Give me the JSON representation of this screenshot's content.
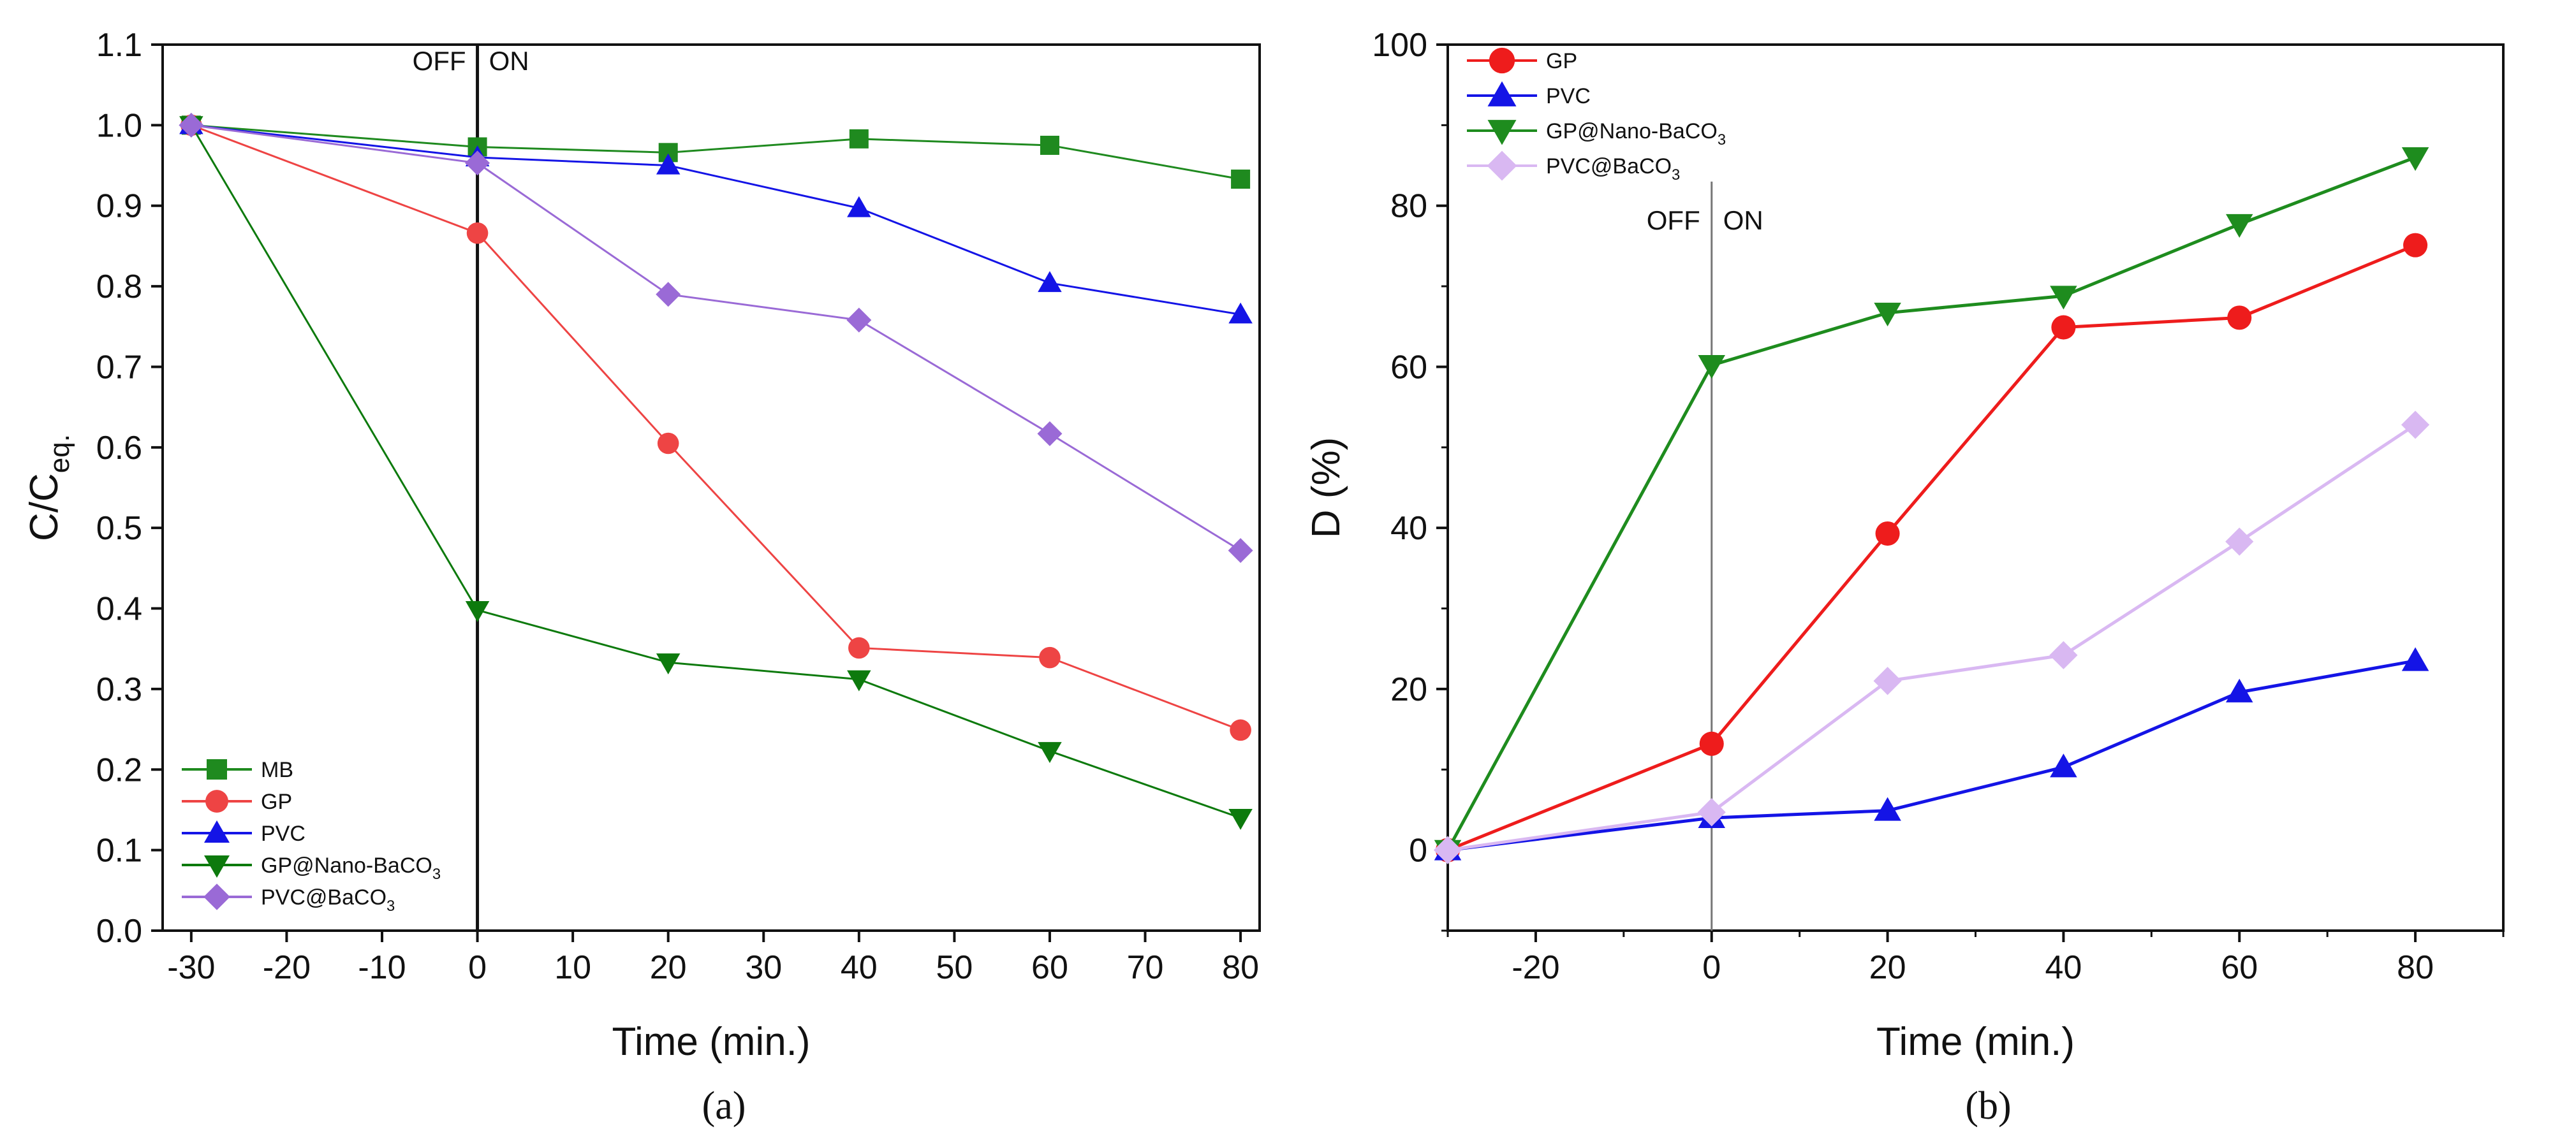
{
  "chart_data": [
    {
      "panel": "a",
      "panel_label": "(a)",
      "type": "line",
      "xlabel": "Time (min.)",
      "ylabel": "C/C_eq.",
      "ylabel_main": "C/C",
      "ylabel_sub": "eq.",
      "xlim": [
        -33,
        82
      ],
      "ylim": [
        0,
        1.1
      ],
      "xticks": [
        -30,
        -20,
        -10,
        0,
        10,
        20,
        30,
        40,
        50,
        60,
        70,
        80
      ],
      "yticks": [
        0.0,
        0.1,
        0.2,
        0.3,
        0.4,
        0.5,
        0.6,
        0.7,
        0.8,
        0.9,
        1.0,
        1.1
      ],
      "xtick_labels": [
        "-30",
        "-20",
        "-10",
        "0",
        "10",
        "20",
        "30",
        "40",
        "50",
        "60",
        "70",
        "80"
      ],
      "ytick_labels": [
        "0.0",
        "0.1",
        "0.2",
        "0.3",
        "0.4",
        "0.5",
        "0.6",
        "0.7",
        "0.8",
        "0.9",
        "1.0",
        "1.1"
      ],
      "vline": {
        "x": 0,
        "off_label": "OFF",
        "on_label": "ON"
      },
      "legend_position": "bottom-left",
      "series": [
        {
          "name": "MB",
          "name_main": "MB",
          "name_sub": "",
          "color": "#1f8a1f",
          "marker": "square",
          "x": [
            -30,
            0,
            20,
            40,
            60,
            80
          ],
          "y": [
            1.0,
            0.973,
            0.966,
            0.983,
            0.975,
            0.933
          ]
        },
        {
          "name": "GP",
          "name_main": "GP",
          "name_sub": "",
          "color": "#ee4444",
          "marker": "circle",
          "x": [
            -30,
            0,
            20,
            40,
            60,
            80
          ],
          "y": [
            1.0,
            0.866,
            0.605,
            0.351,
            0.339,
            0.249
          ]
        },
        {
          "name": "PVC",
          "name_main": "PVC",
          "name_sub": "",
          "color": "#1414e6",
          "marker": "triangle-up",
          "x": [
            -30,
            0,
            20,
            40,
            60,
            80
          ],
          "y": [
            1.0,
            0.96,
            0.95,
            0.897,
            0.804,
            0.765
          ]
        },
        {
          "name": "GP@Nano-BaCO3",
          "name_main": "GP@Nano-BaCO",
          "name_sub": "3",
          "color": "#0d7a0d",
          "marker": "triangle-down",
          "x": [
            -30,
            0,
            20,
            40,
            60,
            80
          ],
          "y": [
            1.0,
            0.398,
            0.333,
            0.312,
            0.223,
            0.14
          ]
        },
        {
          "name": "PVC@BaCO3",
          "name_main": "PVC@BaCO",
          "name_sub": "3",
          "color": "#9a6ad6",
          "marker": "diamond",
          "x": [
            -30,
            0,
            20,
            40,
            60,
            80
          ],
          "y": [
            1.0,
            0.953,
            0.79,
            0.758,
            0.617,
            0.472
          ]
        }
      ]
    },
    {
      "panel": "b",
      "panel_label": "(b)",
      "type": "line",
      "xlabel": "Time (min.)",
      "ylabel": "D (%)",
      "ylabel_main": "D (%)",
      "ylabel_sub": "",
      "xlim": [
        -30,
        90
      ],
      "ylim": [
        -10,
        100
      ],
      "xticks": [
        -20,
        0,
        20,
        40,
        60,
        80
      ],
      "yticks": [
        0,
        20,
        40,
        60,
        80,
        100
      ],
      "xtick_labels": [
        "-20",
        "0",
        "20",
        "40",
        "60",
        "80"
      ],
      "ytick_labels": [
        "0",
        "20",
        "40",
        "60",
        "80",
        "100"
      ],
      "vline": {
        "x": 0,
        "off_label": "OFF",
        "on_label": "ON"
      },
      "legend_position": "top-left",
      "series": [
        {
          "name": "GP",
          "name_main": "GP",
          "name_sub": "",
          "color": "#ee1c1c",
          "marker": "circle",
          "x": [
            -30,
            0,
            20,
            40,
            60,
            80
          ],
          "y": [
            0,
            13.2,
            39.3,
            64.9,
            66.1,
            75.1
          ]
        },
        {
          "name": "PVC",
          "name_main": "PVC",
          "name_sub": "",
          "color": "#1414e6",
          "marker": "triangle-up",
          "x": [
            -30,
            0,
            20,
            40,
            60,
            80
          ],
          "y": [
            0,
            4.0,
            4.9,
            10.3,
            19.6,
            23.5
          ]
        },
        {
          "name": "GP@Nano-BaCO3",
          "name_main": "GP@Nano-BaCO",
          "name_sub": "3",
          "color": "#1e8c1e",
          "marker": "triangle-down",
          "x": [
            -30,
            0,
            20,
            40,
            60,
            80
          ],
          "y": [
            0,
            60.2,
            66.7,
            68.8,
            77.7,
            86.0
          ]
        },
        {
          "name": "PVC@BaCO3",
          "name_main": "PVC@BaCO",
          "name_sub": "3",
          "color": "#d9b8f2",
          "marker": "diamond",
          "x": [
            -30,
            0,
            20,
            40,
            60,
            80
          ],
          "y": [
            0,
            4.7,
            21.0,
            24.2,
            38.3,
            52.8
          ]
        }
      ]
    }
  ]
}
